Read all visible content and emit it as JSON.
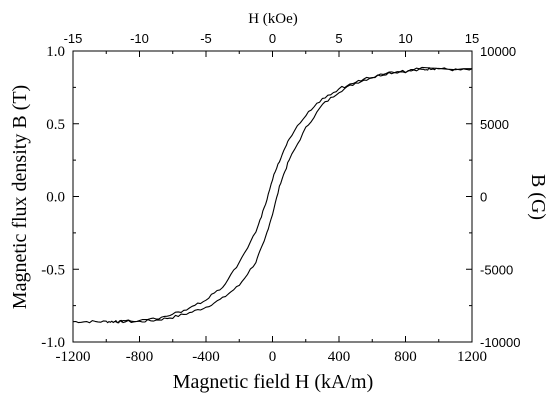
{
  "chart_data": {
    "type": "line",
    "xlabel": "Magnetic field H (kA/m)",
    "ylabel": "Magnetic flux density B (T)",
    "x2label": "H (kOe)",
    "y2label": "B (G)",
    "xlim": [
      -1200,
      1200
    ],
    "ylim": [
      -1.0,
      1.0
    ],
    "x2lim": [
      -15,
      15
    ],
    "y2lim": [
      -10000,
      10000
    ],
    "xticks": [
      -1200,
      -800,
      -400,
      0,
      400,
      800,
      1200
    ],
    "yticks": [
      -1.0,
      -0.5,
      0.0,
      0.5,
      1.0
    ],
    "x2ticks": [
      -15,
      -10,
      -5,
      0,
      5,
      10,
      15
    ],
    "y2ticks": [
      -10000,
      -5000,
      0,
      5000,
      10000
    ],
    "xtick_labels": [
      "-1200",
      "-800",
      "-400",
      "0",
      "400",
      "800",
      "1200"
    ],
    "ytick_labels": [
      "-1.0",
      "-0.5",
      "0.0",
      "0.5",
      "1.0"
    ],
    "x2tick_labels": [
      "-15",
      "-10",
      "-5",
      "0",
      "5",
      "10",
      "15"
    ],
    "y2tick_labels": [
      "-10000",
      "-5000",
      "0",
      "5000",
      "10000"
    ],
    "grid": false,
    "line_color": "#000000",
    "series": [
      {
        "x": [
          -1200,
          -1100,
          -1000,
          -950,
          -900,
          -800,
          -700,
          -600,
          -500,
          -400,
          -300,
          -200,
          -100,
          -50,
          0,
          50,
          100,
          200,
          300,
          400,
          500,
          600,
          700,
          800,
          900,
          950
        ],
        "y": [
          -0.86,
          -0.86,
          -0.86,
          -0.86,
          -0.86,
          -0.86,
          -0.85,
          -0.83,
          -0.8,
          -0.76,
          -0.7,
          -0.61,
          -0.45,
          -0.31,
          -0.12,
          0.1,
          0.25,
          0.47,
          0.63,
          0.72,
          0.78,
          0.82,
          0.85,
          0.86,
          0.87,
          0.88
        ]
      },
      {
        "x": [
          950,
          1000,
          1100,
          1200,
          900,
          800,
          700,
          600,
          500,
          400,
          300,
          200,
          100,
          50,
          0,
          -50,
          -100,
          -200,
          -300,
          -400,
          -500,
          -600,
          -700,
          -800,
          -900,
          -950
        ],
        "y": [
          0.88,
          0.88,
          0.87,
          0.87,
          0.88,
          0.86,
          0.85,
          0.82,
          0.79,
          0.74,
          0.67,
          0.56,
          0.4,
          0.27,
          0.12,
          -0.08,
          -0.24,
          -0.46,
          -0.62,
          -0.71,
          -0.77,
          -0.81,
          -0.84,
          -0.85,
          -0.86,
          -0.86
        ]
      }
    ]
  }
}
